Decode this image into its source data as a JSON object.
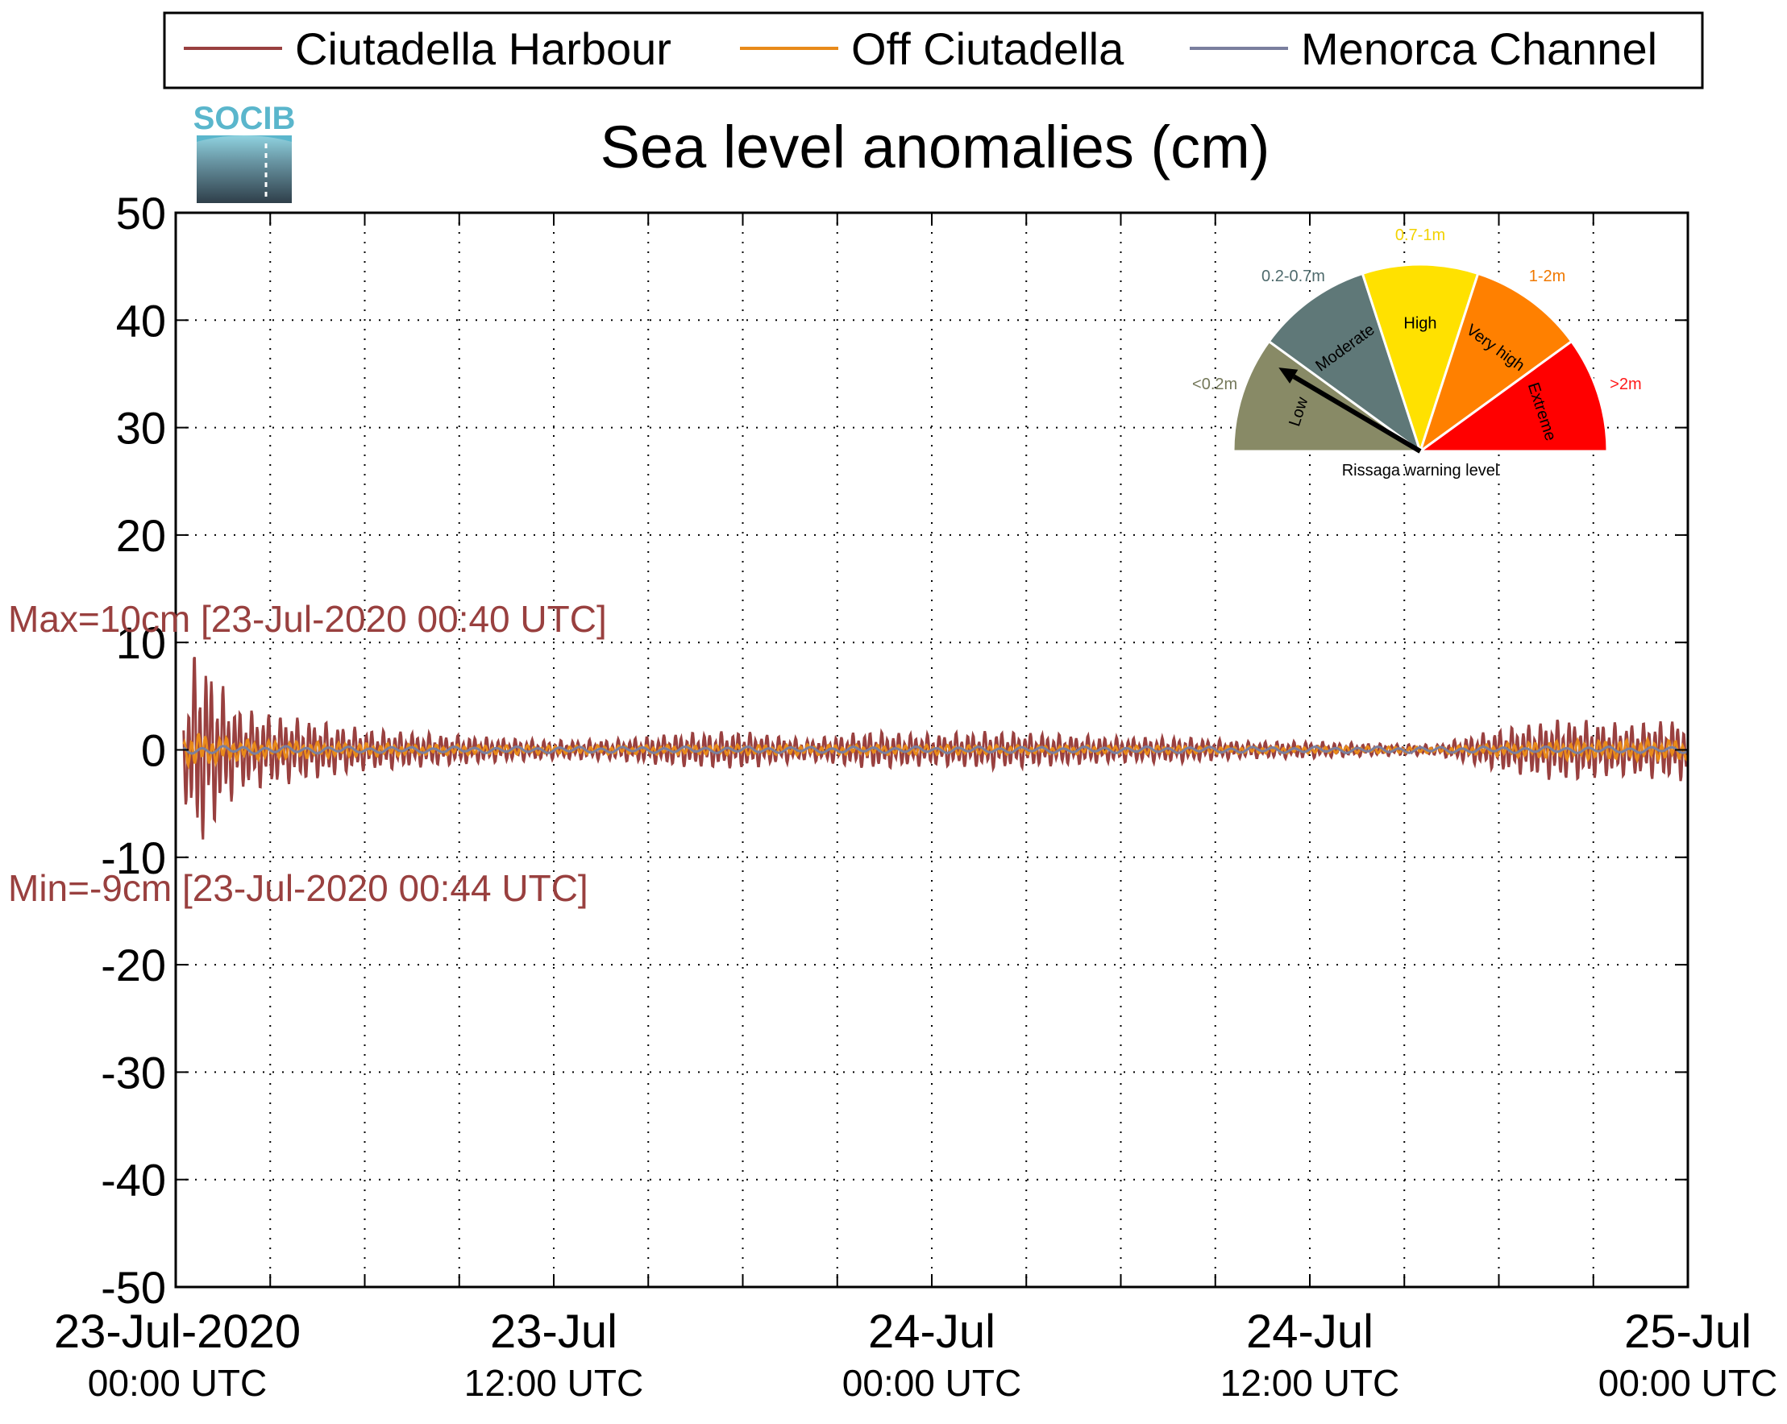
{
  "chart_data": {
    "type": "line",
    "title": "Sea level anomalies (cm)",
    "xlabel": "",
    "ylabel": "",
    "ylim": [
      -50,
      50
    ],
    "yticks": [
      50,
      40,
      30,
      20,
      10,
      0,
      -10,
      -20,
      -30,
      -40,
      -50
    ],
    "ytick_labels": [
      "50",
      "40",
      "30",
      "20",
      "10",
      "0",
      "-10",
      "-20",
      "-30",
      "-40",
      "-50"
    ],
    "xlim": [
      "2020-07-23T00:00",
      "2020-07-25T00:00"
    ],
    "xtick_labels": [
      {
        "line1": "23-Jul-2020",
        "line2": "00:00 UTC"
      },
      {
        "line1": "23-Jul",
        "line2": "12:00 UTC"
      },
      {
        "line1": "24-Jul",
        "line2": "00:00 UTC"
      },
      {
        "line1": "24-Jul",
        "line2": "12:00 UTC"
      },
      {
        "line1": "25-Jul",
        "line2": "00:00 UTC"
      }
    ],
    "grid": true,
    "legend_position": "top",
    "series": [
      {
        "name": "Ciutadella Harbour",
        "color": "#99403f",
        "t_hours": [
          0.0,
          0.5,
          0.67,
          0.73,
          1.0,
          1.5,
          2.0,
          3.0,
          4.0,
          5.0,
          6.0,
          8.0,
          10.0,
          12.0,
          14.0,
          16.0,
          18.0,
          20.0,
          22.0,
          24.0,
          26.0,
          28.0,
          30.0,
          32.0,
          34.0,
          36.0,
          38.0,
          40.0,
          42.0,
          44.0,
          46.0,
          48.0
        ],
        "envelope_cm": [
          0.5,
          8.0,
          10.0,
          9.5,
          8.5,
          6.0,
          4.0,
          3.5,
          3.0,
          2.5,
          2.0,
          1.6,
          1.2,
          0.9,
          1.0,
          1.6,
          1.8,
          1.0,
          1.8,
          1.5,
          1.8,
          1.5,
          1.2,
          1.2,
          0.8,
          0.8,
          0.6,
          0.5,
          2.0,
          3.0,
          2.5,
          3.0
        ],
        "max": 10,
        "min": -9,
        "max_label": "Max=10cm [23-Jul-2020 00:40 UTC]",
        "min_label": "Min=-9cm [23-Jul-2020 00:44 UTC]"
      },
      {
        "name": "Off Ciutadella",
        "color": "#e88a1a",
        "t_hours": [
          0.0,
          0.5,
          1.0,
          2.0,
          4.0,
          8.0,
          12.0,
          20.0,
          30.0,
          40.0,
          44.0,
          48.0
        ],
        "envelope_cm": [
          0.3,
          1.8,
          1.5,
          1.0,
          0.8,
          0.5,
          0.4,
          0.5,
          0.4,
          0.3,
          0.9,
          1.0
        ]
      },
      {
        "name": "Menorca Channel",
        "color": "#7a7f9e",
        "t_hours": [
          0.0,
          6.0,
          12.0,
          24.0,
          36.0,
          48.0
        ],
        "envelope_cm": [
          0.4,
          0.3,
          0.3,
          0.3,
          0.3,
          0.3
        ]
      }
    ]
  },
  "logo": {
    "text": "SOCIB"
  },
  "gauge": {
    "caption": "Rissaga warning level",
    "segments": [
      {
        "label": "Low",
        "range": "<0.2m",
        "color": "#888a66",
        "range_color": "#74785a"
      },
      {
        "label": "Moderate",
        "range": "0.2-0.7m",
        "color": "#5f7878",
        "range_color": "#4e6a6c"
      },
      {
        "label": "High",
        "range": "0.7-1m",
        "color": "#ffe100",
        "range_color": "#f2d200"
      },
      {
        "label": "Very high",
        "range": "1-2m",
        "color": "#ff8000",
        "range_color": "#f07800"
      },
      {
        "label": "Extreme",
        "range": ">2m",
        "color": "#ff0000",
        "range_color": "#ff1a1a"
      }
    ],
    "current_level": "Low"
  }
}
